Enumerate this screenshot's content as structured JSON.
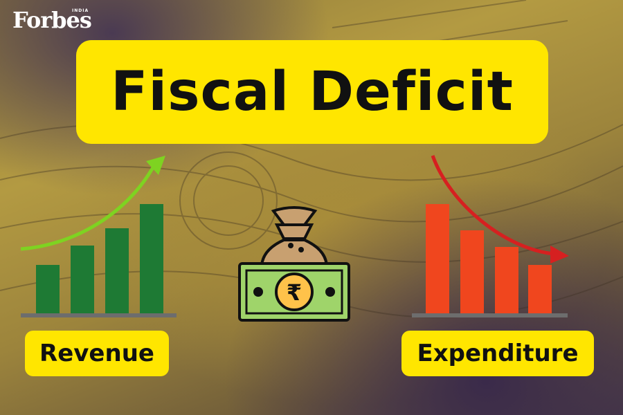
{
  "brand": {
    "logo_text": "Forbes",
    "logo_sub": "INDIA"
  },
  "title": "Fiscal Deficit",
  "labels": {
    "left": "Revenue",
    "right": "Expenditure"
  },
  "icons": {
    "left_chart": "rising-bar-chart-icon",
    "center": "money-bag-rupee-icon",
    "right_chart": "falling-bar-chart-icon",
    "currency_symbol": "₹"
  },
  "colors": {
    "highlight": "#ffe600",
    "revenue_bars": "#1e7a34",
    "revenue_arrow": "#7ed321",
    "expenditure_bars": "#f0461e",
    "expenditure_arrow": "#d62020",
    "banknote": "#9fd46a",
    "bag": "#c8a070"
  }
}
